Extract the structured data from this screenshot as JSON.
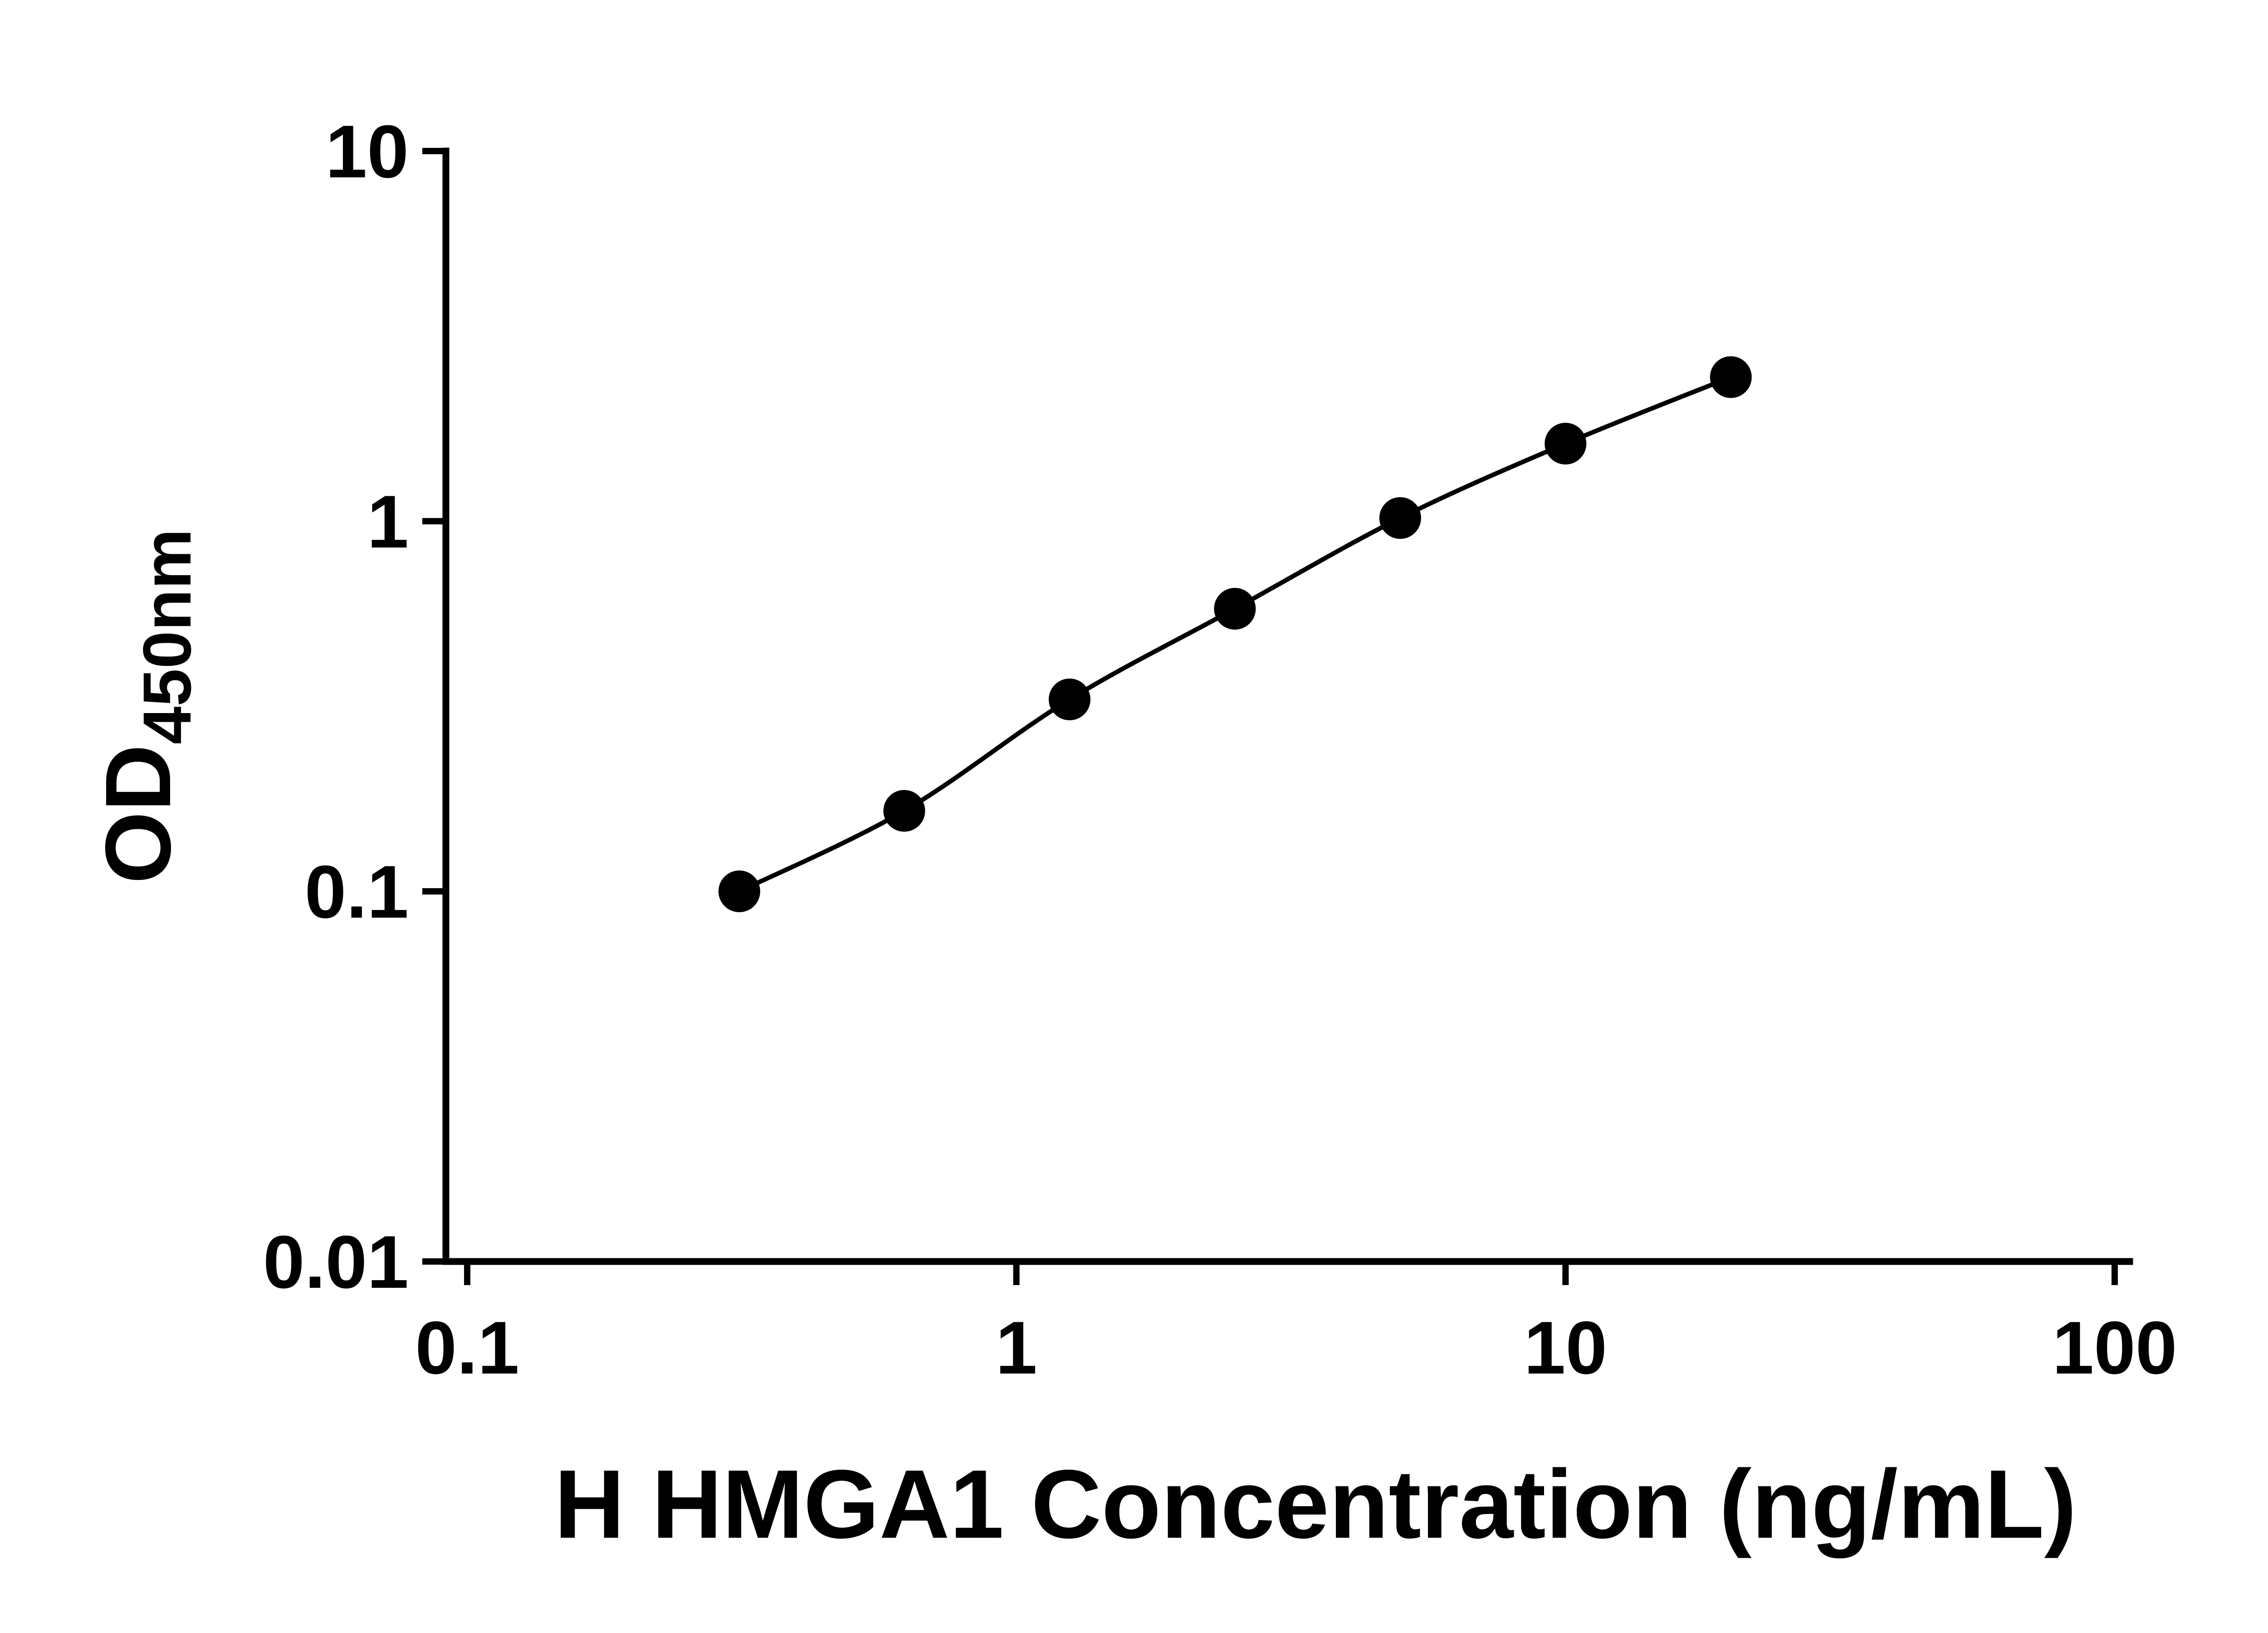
{
  "style": {
    "background_color": "#ffffff",
    "axis_color": "#000000",
    "text_color": "#000000"
  },
  "chart_data": {
    "type": "line",
    "title": "",
    "xlabel": "H HMGA1 Concentration (ng/mL)",
    "ylabel": "OD450nm",
    "ylabel_main": "OD",
    "ylabel_sub": "450nm",
    "x_scale": "log",
    "y_scale": "log",
    "xlim": [
      0.1,
      100
    ],
    "ylim": [
      0.01,
      10
    ],
    "x_ticks": [
      "0.1",
      "1",
      "10",
      "100"
    ],
    "x_tick_values": [
      0.1,
      1,
      10,
      100
    ],
    "y_ticks": [
      "0.01",
      "0.1",
      "1",
      "10"
    ],
    "y_tick_values": [
      0.01,
      0.1,
      1,
      10
    ],
    "x": [
      0.313,
      0.625,
      1.25,
      2.5,
      5,
      10,
      20
    ],
    "y": [
      0.1,
      0.165,
      0.33,
      0.58,
      1.02,
      1.62,
      2.45
    ],
    "marker": "filled-circle",
    "marker_color": "#000000",
    "line_color": "#000000",
    "grid": false,
    "legend": "none"
  }
}
